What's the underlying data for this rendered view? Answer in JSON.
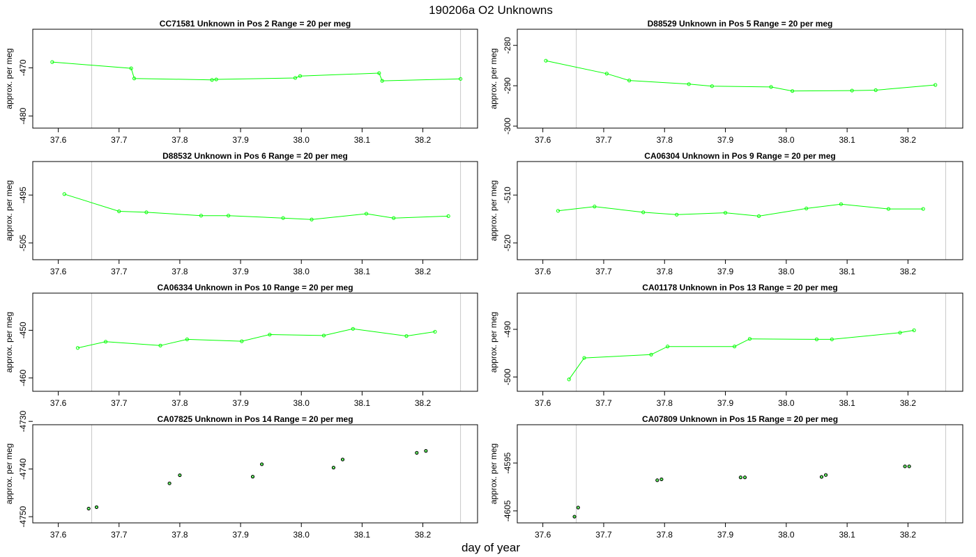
{
  "title": "190206a  O2 Unknowns",
  "xlabel": "day of year",
  "chart_data": [
    {
      "type": "line",
      "title": "CC71581    Unknown in Pos 2          Range = 20 per meg",
      "ylabel": "approx. per meg",
      "xlim": [
        37.558,
        38.29
      ],
      "ylim": [
        -482.5,
        -462
      ],
      "xticks": [
        37.6,
        37.7,
        37.8,
        37.9,
        38.0,
        38.1,
        38.2
      ],
      "yticks": [
        -470,
        -480
      ],
      "vlines": [
        37.655,
        38.262
      ],
      "series": [
        {
          "color": "#00ff00",
          "marker_color": "#00cc00",
          "show_line": true,
          "x": [
            37.59,
            37.72,
            37.725,
            37.853,
            37.86,
            37.99,
            37.998,
            38.128,
            38.133,
            38.262
          ],
          "y": [
            -468.8,
            -470.1,
            -472.2,
            -472.5,
            -472.4,
            -472.1,
            -471.7,
            -471.1,
            -472.7,
            -472.3
          ]
        }
      ]
    },
    {
      "type": "line",
      "title": "D88529    Unknown in Pos 5          Range = 20 per meg",
      "ylabel": "approx. per meg",
      "xlim": [
        37.558,
        38.29
      ],
      "ylim": [
        -300.5,
        -276
      ],
      "xticks": [
        37.6,
        37.7,
        37.8,
        37.9,
        38.0,
        38.1,
        38.2
      ],
      "yticks": [
        -280,
        -290,
        -300
      ],
      "vlines": [
        37.655,
        38.262
      ],
      "series": [
        {
          "color": "#00ff00",
          "marker_color": "#00cc00",
          "show_line": true,
          "x": [
            37.605,
            37.705,
            37.742,
            37.84,
            37.878,
            37.975,
            38.01,
            38.108,
            38.147,
            38.245
          ],
          "y": [
            -283.8,
            -287.0,
            -288.7,
            -289.6,
            -290.1,
            -290.3,
            -291.3,
            -291.2,
            -291.1,
            -289.8
          ]
        }
      ]
    },
    {
      "type": "line",
      "title": "D88532    Unknown in Pos 6          Range = 20 per meg",
      "ylabel": "approx. per meg",
      "xlim": [
        37.558,
        38.29
      ],
      "ylim": [
        -508.5,
        -488
      ],
      "xticks": [
        37.6,
        37.7,
        37.8,
        37.9,
        38.0,
        38.1,
        38.2
      ],
      "yticks": [
        -495,
        -505
      ],
      "vlines": [
        37.655,
        38.262
      ],
      "series": [
        {
          "color": "#00ff00",
          "marker_color": "#00cc00",
          "show_line": true,
          "x": [
            37.61,
            37.7,
            37.745,
            37.835,
            37.88,
            37.97,
            38.017,
            38.107,
            38.152,
            38.242
          ],
          "y": [
            -494.8,
            -498.4,
            -498.6,
            -499.3,
            -499.3,
            -499.8,
            -500.1,
            -498.9,
            -499.8,
            -499.4
          ]
        }
      ]
    },
    {
      "type": "line",
      "title": "CA06304    Unknown in Pos 9          Range = 20 per meg",
      "ylabel": "approx. per meg",
      "xlim": [
        37.558,
        38.29
      ],
      "ylim": [
        -523.5,
        -503
      ],
      "xticks": [
        37.6,
        37.7,
        37.8,
        37.9,
        38.0,
        38.1,
        38.2
      ],
      "yticks": [
        -510,
        -520
      ],
      "vlines": [
        37.655,
        38.262
      ],
      "series": [
        {
          "color": "#00ff00",
          "marker_color": "#00cc00",
          "show_line": true,
          "x": [
            37.625,
            37.685,
            37.765,
            37.82,
            37.9,
            37.955,
            38.033,
            38.09,
            38.168,
            38.225
          ],
          "y": [
            -513.3,
            -512.4,
            -513.6,
            -514.1,
            -513.7,
            -514.4,
            -512.8,
            -511.9,
            -512.9,
            -512.9
          ]
        }
      ]
    },
    {
      "type": "line",
      "title": "CA06334    Unknown in Pos 10          Range = 20 per meg",
      "ylabel": "approx. per meg",
      "xlim": [
        37.558,
        38.29
      ],
      "ylim": [
        -462.8,
        -442.2
      ],
      "xticks": [
        37.6,
        37.7,
        37.8,
        37.9,
        38.0,
        38.1,
        38.2
      ],
      "yticks": [
        -450,
        -460
      ],
      "vlines": [
        37.655,
        38.262
      ],
      "series": [
        {
          "color": "#00ff00",
          "marker_color": "#00cc00",
          "show_line": true,
          "x": [
            37.632,
            37.678,
            37.768,
            37.812,
            37.902,
            37.948,
            38.037,
            38.085,
            38.173,
            38.22
          ],
          "y": [
            -453.7,
            -452.4,
            -453.2,
            -451.9,
            -452.3,
            -450.9,
            -451.1,
            -449.7,
            -451.2,
            -450.3
          ]
        }
      ]
    },
    {
      "type": "line",
      "title": "CA01178    Unknown in Pos 13          Range = 20 per meg",
      "ylabel": "approx. per meg",
      "xlim": [
        37.558,
        38.29
      ],
      "ylim": [
        -503,
        -482.4
      ],
      "xticks": [
        37.6,
        37.7,
        37.8,
        37.9,
        38.0,
        38.1,
        38.2
      ],
      "yticks": [
        -490,
        -500
      ],
      "vlines": [
        37.655,
        38.262
      ],
      "series": [
        {
          "color": "#00ff00",
          "marker_color": "#00cc00",
          "show_line": true,
          "x": [
            37.643,
            37.668,
            37.778,
            37.805,
            37.915,
            37.94,
            38.05,
            38.075,
            38.187,
            38.21
          ],
          "y": [
            -500.5,
            -496.0,
            -495.3,
            -493.6,
            -493.6,
            -492.0,
            -492.1,
            -492.1,
            -490.7,
            -490.2
          ]
        }
      ]
    },
    {
      "type": "scatter",
      "title": "CA07825    Unknown in Pos 14          Range = 20 per meg",
      "ylabel": "approx. per meg",
      "xlim": [
        37.558,
        38.29
      ],
      "ylim": [
        -4751.3,
        -4730.7
      ],
      "xticks": [
        37.6,
        37.7,
        37.8,
        37.9,
        38.0,
        38.1,
        38.2
      ],
      "yticks": [
        -4730,
        -4740,
        -4750
      ],
      "vlines": [
        37.655,
        38.262
      ],
      "series": [
        {
          "color": "#000000",
          "marker_color": "#00cc00",
          "show_line": false,
          "x": [
            37.65,
            37.663,
            37.783,
            37.8,
            37.92,
            37.935,
            38.053,
            38.068,
            38.19,
            38.205
          ],
          "y": [
            -4748.3,
            -4748.0,
            -4743.0,
            -4741.3,
            -4741.6,
            -4739.0,
            -4739.7,
            -4738.0,
            -4736.6,
            -4736.2
          ]
        }
      ]
    },
    {
      "type": "scatter",
      "title": "CA07809    Unknown in Pos 15          Range = 20 per meg",
      "ylabel": "approx. per meg",
      "xlim": [
        37.558,
        38.29
      ],
      "ylim": [
        -4607.5,
        -4587
      ],
      "xticks": [
        37.6,
        37.7,
        37.8,
        37.9,
        38.0,
        38.1,
        38.2
      ],
      "yticks": [
        -4595,
        -4605
      ],
      "vlines": [
        37.655,
        38.262
      ],
      "series": [
        {
          "color": "#000000",
          "marker_color": "#00cc00",
          "show_line": false,
          "x": [
            37.652,
            37.658,
            37.788,
            37.795,
            37.925,
            37.932,
            38.058,
            38.065,
            38.195,
            38.202
          ],
          "y": [
            -4606.2,
            -4604.3,
            -4598.6,
            -4598.4,
            -4598.0,
            -4598.0,
            -4597.9,
            -4597.5,
            -4595.7,
            -4595.7
          ]
        }
      ]
    }
  ]
}
